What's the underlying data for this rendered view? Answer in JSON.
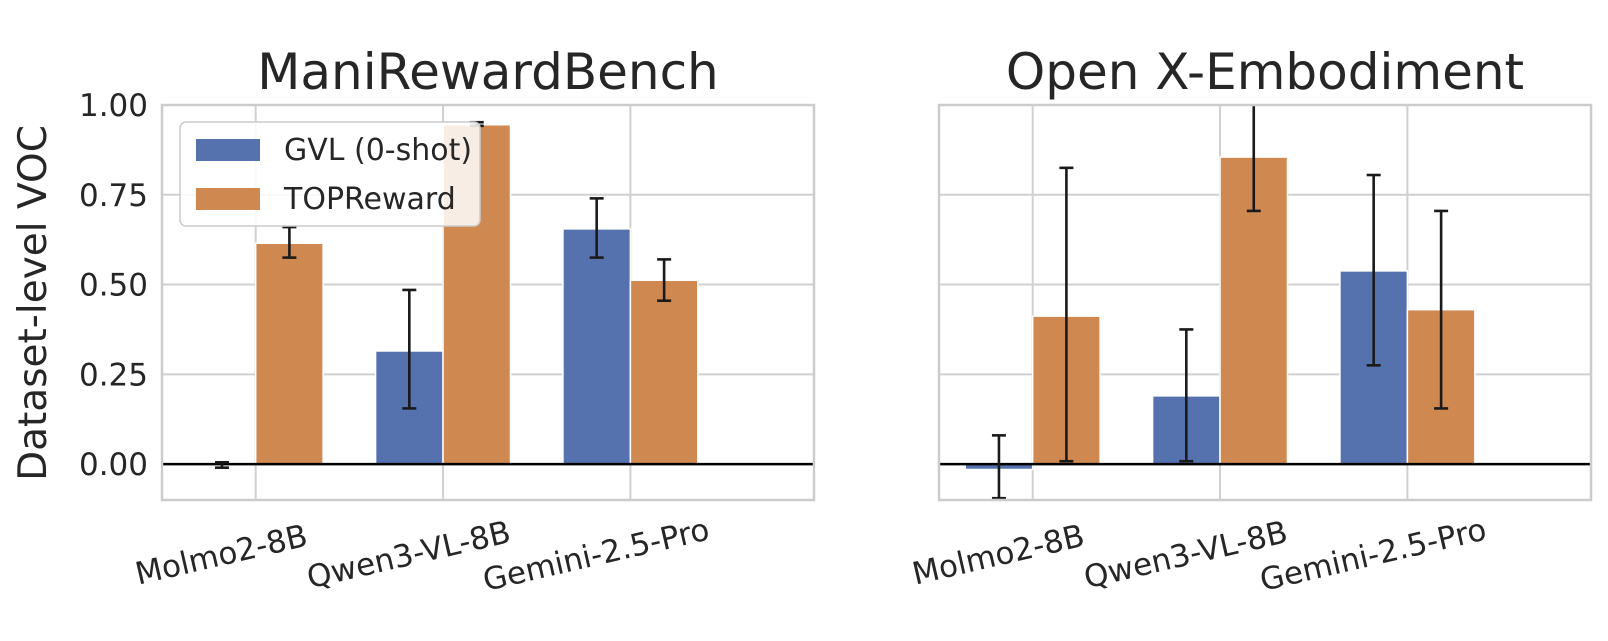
{
  "chart_data": {
    "type": "bar",
    "ylabel": "Dataset-level VOC",
    "ylim": [
      -0.1,
      1.0
    ],
    "yticks": [
      0.0,
      0.25,
      0.5,
      0.75,
      1.0
    ],
    "ytick_labels": [
      "0.00",
      "0.25",
      "0.50",
      "0.75",
      "1.00"
    ],
    "grid": true,
    "legend": {
      "placement": "top-left",
      "entries": [
        "GVL (0-shot)",
        "TOPReward"
      ]
    },
    "colors": {
      "GVL (0-shot)": "#5572ae",
      "TOPReward": "#cf8850"
    },
    "panels": [
      {
        "title": "ManiRewardBench",
        "categories": [
          "Molmo2-8B",
          "Qwen3-VL-8B",
          "Gemini-2.5-Pro"
        ],
        "series": [
          {
            "name": "GVL (0-shot)",
            "values": [
              0.0,
              0.315,
              0.655
            ],
            "err_low": [
              -0.01,
              0.155,
              0.575
            ],
            "err_high": [
              0.005,
              0.485,
              0.74
            ]
          },
          {
            "name": "TOPReward",
            "values": [
              0.615,
              0.945,
              0.512
            ],
            "err_low": [
              0.575,
              0.942,
              0.455
            ],
            "err_high": [
              0.66,
              0.952,
              0.57
            ]
          }
        ]
      },
      {
        "title": "Open X-Embodiment",
        "categories": [
          "Molmo2-8B",
          "Qwen3-VL-8B",
          "Gemini-2.5-Pro"
        ],
        "series": [
          {
            "name": "GVL (0-shot)",
            "values": [
              -0.015,
              0.19,
              0.538
            ],
            "err_low": [
              -0.095,
              0.008,
              0.275
            ],
            "err_high": [
              0.08,
              0.375,
              0.805
            ]
          },
          {
            "name": "TOPReward",
            "values": [
              0.412,
              0.855,
              0.43
            ],
            "err_low": [
              0.008,
              0.705,
              0.155
            ],
            "err_high": [
              0.825,
              1.0,
              0.705
            ]
          }
        ]
      }
    ]
  }
}
